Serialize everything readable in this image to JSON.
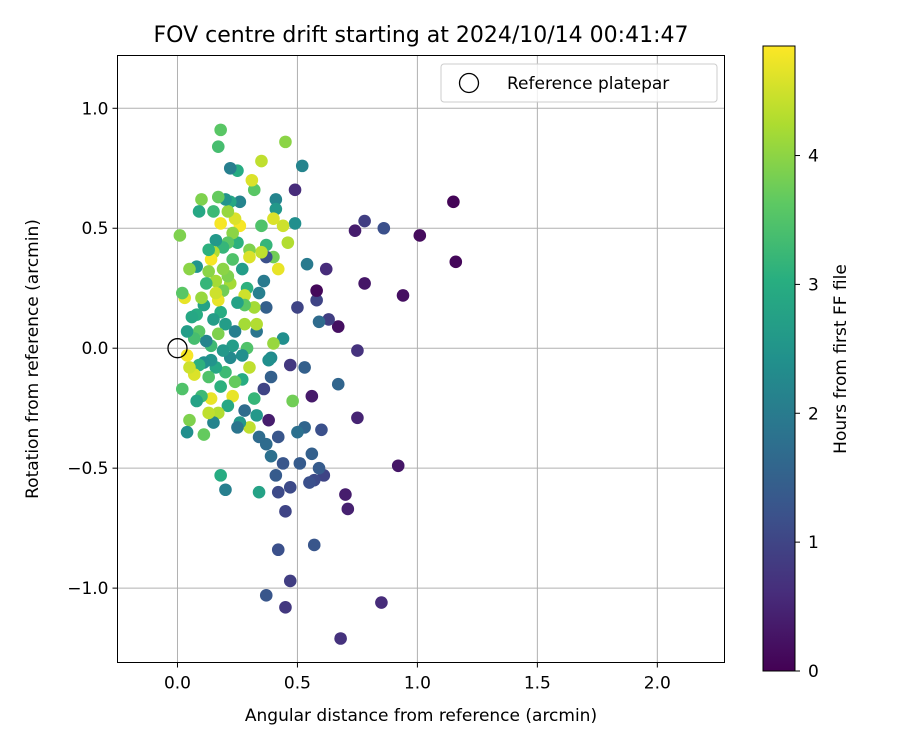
{
  "chart_data": {
    "type": "scatter",
    "title": "FOV centre drift starting at 2024/10/14 00:41:47",
    "xlabel": "Angular distance from reference (arcmin)",
    "ylabel": "Rotation from reference (arcmin)",
    "xlim": [
      -0.25,
      2.28
    ],
    "ylim": [
      -1.31,
      1.22
    ],
    "xticks": [
      0.0,
      0.5,
      1.0,
      1.5,
      2.0
    ],
    "xtick_labels": [
      "0.0",
      "0.5",
      "1.0",
      "1.5",
      "2.0"
    ],
    "yticks": [
      1.0,
      0.5,
      0.0,
      -0.5,
      -1.0
    ],
    "ytick_labels": [
      "1.0",
      "0.5",
      "0.0",
      "−0.5",
      "−1.0"
    ],
    "grid": true,
    "legend": {
      "position": "top-right",
      "entries": [
        "Reference platepar"
      ]
    },
    "reference_point": {
      "x": 0.0,
      "y": 0.0
    },
    "colorbar": {
      "label": "Hours from first FF file",
      "range": [
        0,
        4.85
      ],
      "ticks": [
        0,
        1,
        2,
        3,
        4
      ],
      "tick_labels": [
        "0",
        "1",
        "2",
        "3",
        "4"
      ],
      "colormap": "viridis"
    },
    "points": [
      {
        "x": 1.15,
        "y": 0.61,
        "t": 0.05
      },
      {
        "x": 1.16,
        "y": 0.36,
        "t": 0.08
      },
      {
        "x": 1.01,
        "y": 0.47,
        "t": 0.15
      },
      {
        "x": 0.94,
        "y": 0.22,
        "t": 0.2
      },
      {
        "x": 0.92,
        "y": -0.49,
        "t": 0.3
      },
      {
        "x": 0.86,
        "y": 0.5,
        "t": 1.2
      },
      {
        "x": 0.85,
        "y": -1.06,
        "t": 0.6
      },
      {
        "x": 0.78,
        "y": 0.53,
        "t": 0.9
      },
      {
        "x": 0.78,
        "y": 0.27,
        "t": 0.3
      },
      {
        "x": 0.75,
        "y": -0.01,
        "t": 0.7
      },
      {
        "x": 0.75,
        "y": -0.29,
        "t": 0.5
      },
      {
        "x": 0.74,
        "y": 0.49,
        "t": 0.4
      },
      {
        "x": 0.71,
        "y": -0.67,
        "t": 0.45
      },
      {
        "x": 0.7,
        "y": -0.61,
        "t": 0.4
      },
      {
        "x": 0.68,
        "y": -1.21,
        "t": 0.7
      },
      {
        "x": 0.67,
        "y": -0.15,
        "t": 1.6
      },
      {
        "x": 0.67,
        "y": 0.09,
        "t": 0.2
      },
      {
        "x": 0.63,
        "y": 0.12,
        "t": 0.9
      },
      {
        "x": 0.62,
        "y": 0.33,
        "t": 0.6
      },
      {
        "x": 0.61,
        "y": -0.53,
        "t": 1.0
      },
      {
        "x": 0.6,
        "y": -0.34,
        "t": 1.2
      },
      {
        "x": 0.59,
        "y": 0.11,
        "t": 1.7
      },
      {
        "x": 0.58,
        "y": 0.2,
        "t": 1.0
      },
      {
        "x": 0.58,
        "y": 0.24,
        "t": 0.1
      },
      {
        "x": 0.59,
        "y": -0.5,
        "t": 1.4
      },
      {
        "x": 0.57,
        "y": -0.82,
        "t": 1.3
      },
      {
        "x": 0.57,
        "y": -0.55,
        "t": 1.1
      },
      {
        "x": 0.56,
        "y": -0.2,
        "t": 0.35
      },
      {
        "x": 0.56,
        "y": -0.44,
        "t": 1.5
      },
      {
        "x": 0.55,
        "y": -0.56,
        "t": 1.2
      },
      {
        "x": 0.54,
        "y": 0.35,
        "t": 2.0
      },
      {
        "x": 0.53,
        "y": -0.33,
        "t": 1.6
      },
      {
        "x": 0.53,
        "y": -0.08,
        "t": 1.5
      },
      {
        "x": 0.52,
        "y": 0.76,
        "t": 2.2
      },
      {
        "x": 0.51,
        "y": -0.48,
        "t": 1.4
      },
      {
        "x": 0.5,
        "y": 0.17,
        "t": 1.0
      },
      {
        "x": 0.5,
        "y": -0.35,
        "t": 1.8
      },
      {
        "x": 0.49,
        "y": 0.52,
        "t": 2.4
      },
      {
        "x": 0.49,
        "y": 0.66,
        "t": 0.6
      },
      {
        "x": 0.48,
        "y": -0.22,
        "t": 3.8
      },
      {
        "x": 0.47,
        "y": -0.97,
        "t": 0.9
      },
      {
        "x": 0.47,
        "y": -0.58,
        "t": 1.1
      },
      {
        "x": 0.47,
        "y": -0.07,
        "t": 0.8
      },
      {
        "x": 0.46,
        "y": 0.44,
        "t": 4.3
      },
      {
        "x": 0.45,
        "y": 0.86,
        "t": 4.0
      },
      {
        "x": 0.45,
        "y": -0.68,
        "t": 1.0
      },
      {
        "x": 0.45,
        "y": -1.08,
        "t": 0.8
      },
      {
        "x": 0.44,
        "y": -0.48,
        "t": 1.3
      },
      {
        "x": 0.44,
        "y": 0.51,
        "t": 4.5
      },
      {
        "x": 0.44,
        "y": 0.04,
        "t": 2.4
      },
      {
        "x": 0.42,
        "y": 0.33,
        "t": 4.7
      },
      {
        "x": 0.42,
        "y": -0.6,
        "t": 1.1
      },
      {
        "x": 0.42,
        "y": -0.84,
        "t": 1.2
      },
      {
        "x": 0.42,
        "y": -0.37,
        "t": 1.3
      },
      {
        "x": 0.41,
        "y": -0.53,
        "t": 1.4
      },
      {
        "x": 0.41,
        "y": 0.62,
        "t": 2.2
      },
      {
        "x": 0.41,
        "y": 0.58,
        "t": 2.6
      },
      {
        "x": 0.4,
        "y": 0.02,
        "t": 4.1
      },
      {
        "x": 0.4,
        "y": 0.54,
        "t": 4.6
      },
      {
        "x": 0.4,
        "y": 0.38,
        "t": 3.8
      },
      {
        "x": 0.39,
        "y": -0.12,
        "t": 1.5
      },
      {
        "x": 0.39,
        "y": -0.04,
        "t": 2.3
      },
      {
        "x": 0.39,
        "y": -0.45,
        "t": 1.8
      },
      {
        "x": 0.38,
        "y": -0.3,
        "t": 0.4
      },
      {
        "x": 0.38,
        "y": -0.05,
        "t": 2.4
      },
      {
        "x": 0.37,
        "y": 0.43,
        "t": 3.2
      },
      {
        "x": 0.37,
        "y": -0.4,
        "t": 1.7
      },
      {
        "x": 0.37,
        "y": -1.03,
        "t": 1.3
      },
      {
        "x": 0.37,
        "y": 0.38,
        "t": 1.2
      },
      {
        "x": 0.37,
        "y": 0.17,
        "t": 1.5
      },
      {
        "x": 0.36,
        "y": -0.17,
        "t": 1.0
      },
      {
        "x": 0.36,
        "y": 0.28,
        "t": 2.0
      },
      {
        "x": 0.35,
        "y": 0.78,
        "t": 4.4
      },
      {
        "x": 0.35,
        "y": 0.51,
        "t": 3.5
      },
      {
        "x": 0.35,
        "y": 0.4,
        "t": 4.4
      },
      {
        "x": 0.34,
        "y": -0.6,
        "t": 2.8
      },
      {
        "x": 0.34,
        "y": -0.37,
        "t": 1.7
      },
      {
        "x": 0.34,
        "y": 0.23,
        "t": 2.1
      },
      {
        "x": 0.33,
        "y": -0.28,
        "t": 2.6
      },
      {
        "x": 0.33,
        "y": 0.07,
        "t": 1.9
      },
      {
        "x": 0.33,
        "y": 0.1,
        "t": 4.3
      },
      {
        "x": 0.32,
        "y": 0.17,
        "t": 4.2
      },
      {
        "x": 0.32,
        "y": 0.66,
        "t": 3.6
      },
      {
        "x": 0.32,
        "y": -0.21,
        "t": 3.2
      },
      {
        "x": 0.31,
        "y": 0.7,
        "t": 4.6
      },
      {
        "x": 0.3,
        "y": 0.41,
        "t": 3.9
      },
      {
        "x": 0.3,
        "y": 0.38,
        "t": 4.6
      },
      {
        "x": 0.3,
        "y": -0.08,
        "t": 4.4
      },
      {
        "x": 0.3,
        "y": -0.33,
        "t": 4.4
      },
      {
        "x": 0.29,
        "y": 0.0,
        "t": 3.5
      },
      {
        "x": 0.29,
        "y": 0.25,
        "t": 3.1
      },
      {
        "x": 0.28,
        "y": 0.22,
        "t": 4.5
      },
      {
        "x": 0.28,
        "y": 0.18,
        "t": 3.6
      },
      {
        "x": 0.28,
        "y": 0.1,
        "t": 4.2
      },
      {
        "x": 0.28,
        "y": -0.26,
        "t": 1.7
      },
      {
        "x": 0.27,
        "y": -0.13,
        "t": 3.0
      },
      {
        "x": 0.27,
        "y": 0.33,
        "t": 2.7
      },
      {
        "x": 0.27,
        "y": -0.03,
        "t": 2.4
      },
      {
        "x": 0.26,
        "y": 0.51,
        "t": 4.8
      },
      {
        "x": 0.26,
        "y": -0.31,
        "t": 2.6
      },
      {
        "x": 0.26,
        "y": 0.61,
        "t": 2.2
      },
      {
        "x": 0.25,
        "y": 0.74,
        "t": 3.0
      },
      {
        "x": 0.25,
        "y": -0.33,
        "t": 1.9
      },
      {
        "x": 0.25,
        "y": 0.19,
        "t": 2.8
      },
      {
        "x": 0.25,
        "y": 0.44,
        "t": 3.1
      },
      {
        "x": 0.24,
        "y": 0.54,
        "t": 4.6
      },
      {
        "x": 0.24,
        "y": 0.07,
        "t": 2.1
      },
      {
        "x": 0.24,
        "y": -0.14,
        "t": 3.7
      },
      {
        "x": 0.23,
        "y": 0.37,
        "t": 3.5
      },
      {
        "x": 0.23,
        "y": 0.01,
        "t": 2.7
      },
      {
        "x": 0.23,
        "y": 0.48,
        "t": 4.0
      },
      {
        "x": 0.23,
        "y": -0.2,
        "t": 4.7
      },
      {
        "x": 0.22,
        "y": 0.75,
        "t": 2.1
      },
      {
        "x": 0.22,
        "y": 0.61,
        "t": 2.9
      },
      {
        "x": 0.22,
        "y": 0.27,
        "t": 4.2
      },
      {
        "x": 0.22,
        "y": -0.04,
        "t": 2.3
      },
      {
        "x": 0.21,
        "y": 0.44,
        "t": 3.6
      },
      {
        "x": 0.21,
        "y": 0.3,
        "t": 3.9
      },
      {
        "x": 0.21,
        "y": -0.24,
        "t": 2.9
      },
      {
        "x": 0.21,
        "y": 0.57,
        "t": 4.1
      },
      {
        "x": 0.2,
        "y": 0.62,
        "t": 2.5
      },
      {
        "x": 0.2,
        "y": -0.59,
        "t": 2.1
      },
      {
        "x": 0.2,
        "y": 0.1,
        "t": 2.7
      },
      {
        "x": 0.2,
        "y": -0.1,
        "t": 3.3
      },
      {
        "x": 0.19,
        "y": 0.24,
        "t": 3.8
      },
      {
        "x": 0.19,
        "y": 0.33,
        "t": 4.0
      },
      {
        "x": 0.19,
        "y": -0.01,
        "t": 2.6
      },
      {
        "x": 0.19,
        "y": 0.42,
        "t": 3.2
      },
      {
        "x": 0.18,
        "y": 0.91,
        "t": 3.6
      },
      {
        "x": 0.18,
        "y": 0.52,
        "t": 4.8
      },
      {
        "x": 0.18,
        "y": -0.16,
        "t": 3.1
      },
      {
        "x": 0.18,
        "y": 0.15,
        "t": 3.0
      },
      {
        "x": 0.18,
        "y": -0.53,
        "t": 3.0
      },
      {
        "x": 0.17,
        "y": 0.84,
        "t": 3.4
      },
      {
        "x": 0.17,
        "y": 0.63,
        "t": 3.7
      },
      {
        "x": 0.17,
        "y": 0.2,
        "t": 4.7
      },
      {
        "x": 0.17,
        "y": 0.06,
        "t": 3.9
      },
      {
        "x": 0.17,
        "y": -0.27,
        "t": 4.3
      },
      {
        "x": 0.16,
        "y": 0.45,
        "t": 2.6
      },
      {
        "x": 0.16,
        "y": 0.28,
        "t": 4.2
      },
      {
        "x": 0.16,
        "y": 0.23,
        "t": 4.5
      },
      {
        "x": 0.16,
        "y": -0.08,
        "t": 2.9
      },
      {
        "x": 0.15,
        "y": 0.4,
        "t": 4.3
      },
      {
        "x": 0.15,
        "y": 0.57,
        "t": 3.3
      },
      {
        "x": 0.15,
        "y": -0.31,
        "t": 2.2
      },
      {
        "x": 0.15,
        "y": 0.12,
        "t": 2.7
      },
      {
        "x": 0.14,
        "y": 0.37,
        "t": 4.8
      },
      {
        "x": 0.14,
        "y": -0.21,
        "t": 4.7
      },
      {
        "x": 0.14,
        "y": 0.01,
        "t": 3.3
      },
      {
        "x": 0.14,
        "y": -0.05,
        "t": 2.5
      },
      {
        "x": 0.13,
        "y": 0.32,
        "t": 4.0
      },
      {
        "x": 0.13,
        "y": 0.41,
        "t": 3.1
      },
      {
        "x": 0.13,
        "y": -0.12,
        "t": 3.5
      },
      {
        "x": 0.13,
        "y": -0.27,
        "t": 4.4
      },
      {
        "x": 0.12,
        "y": 0.27,
        "t": 3.2
      },
      {
        "x": 0.12,
        "y": 0.03,
        "t": 2.2
      },
      {
        "x": 0.11,
        "y": -0.06,
        "t": 2.4
      },
      {
        "x": 0.11,
        "y": 0.18,
        "t": 2.8
      },
      {
        "x": 0.11,
        "y": -0.36,
        "t": 3.7
      },
      {
        "x": 0.1,
        "y": 0.62,
        "t": 3.9
      },
      {
        "x": 0.1,
        "y": 0.21,
        "t": 4.1
      },
      {
        "x": 0.1,
        "y": -0.2,
        "t": 3.3
      },
      {
        "x": 0.09,
        "y": 0.57,
        "t": 2.9
      },
      {
        "x": 0.09,
        "y": 0.07,
        "t": 3.6
      },
      {
        "x": 0.09,
        "y": -0.07,
        "t": 3.1
      },
      {
        "x": 0.08,
        "y": 0.14,
        "t": 3.0
      },
      {
        "x": 0.08,
        "y": -0.22,
        "t": 2.8
      },
      {
        "x": 0.08,
        "y": 0.34,
        "t": 2.5
      },
      {
        "x": 0.07,
        "y": -0.11,
        "t": 4.6
      },
      {
        "x": 0.07,
        "y": 0.04,
        "t": 3.4
      },
      {
        "x": 0.06,
        "y": 0.13,
        "t": 2.9
      },
      {
        "x": 0.05,
        "y": 0.33,
        "t": 4.0
      },
      {
        "x": 0.05,
        "y": -0.3,
        "t": 3.9
      },
      {
        "x": 0.05,
        "y": -0.08,
        "t": 4.5
      },
      {
        "x": 0.04,
        "y": 0.07,
        "t": 2.7
      },
      {
        "x": 0.04,
        "y": -0.35,
        "t": 2.4
      },
      {
        "x": 0.04,
        "y": -0.03,
        "t": 4.8
      },
      {
        "x": 0.03,
        "y": 0.21,
        "t": 4.7
      },
      {
        "x": 0.02,
        "y": -0.17,
        "t": 3.5
      },
      {
        "x": 0.02,
        "y": 0.23,
        "t": 3.6
      },
      {
        "x": 0.01,
        "y": 0.47,
        "t": 3.9
      }
    ]
  }
}
